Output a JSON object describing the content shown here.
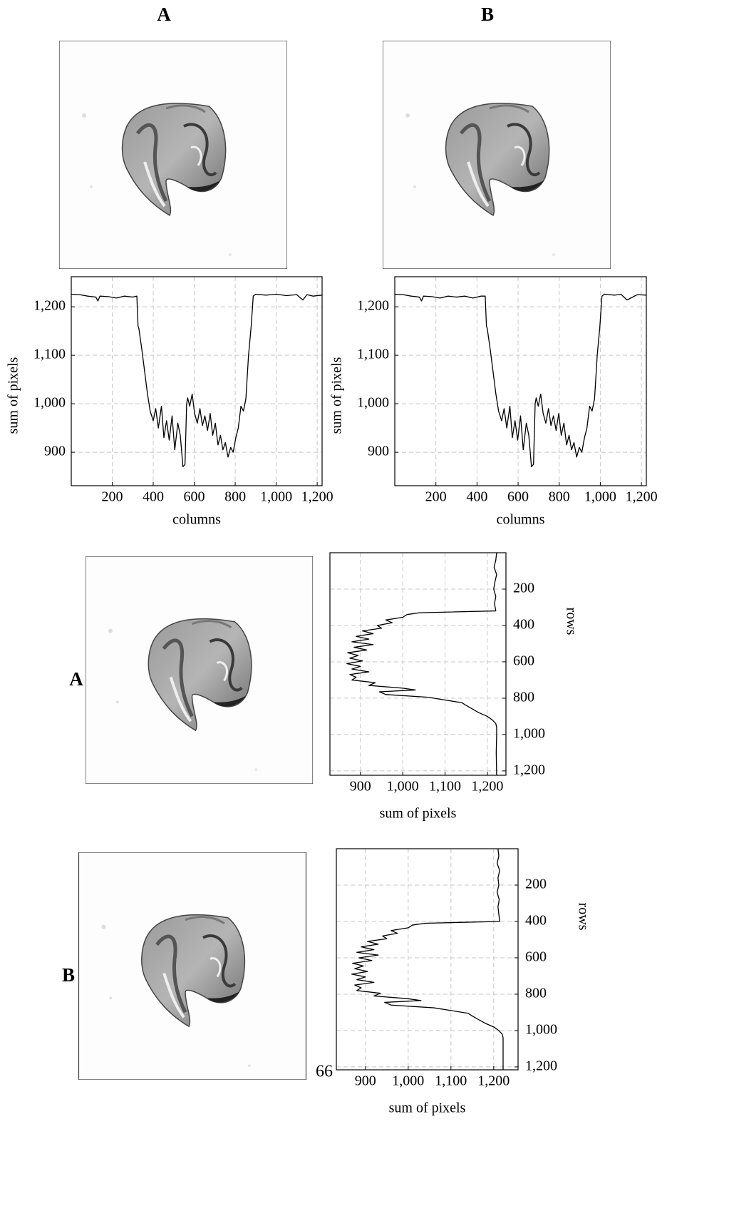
{
  "figure": {
    "column_labels": [
      "A",
      "B"
    ],
    "row_labels": [
      "A",
      "B"
    ],
    "page_number": "66"
  },
  "chart_data": [
    {
      "type": "line",
      "orientation": "horizontal",
      "xlabel": "columns",
      "ylabel": "sum of pixels",
      "grid": true,
      "xlim": [
        0,
        1224
      ],
      "xticks": [
        200,
        400,
        600,
        800,
        {
          "value": 1000,
          "label": "1,000"
        },
        {
          "value": 1200,
          "label": "1,200"
        }
      ],
      "ylim": [
        831,
        1262
      ],
      "yticks": [
        900,
        {
          "value": 1000,
          "label": "1,000"
        },
        {
          "value": 1100,
          "label": "1,100"
        },
        {
          "value": 1200,
          "label": "1,200"
        }
      ],
      "x": [
        0,
        40,
        80,
        120,
        130,
        140,
        180,
        220,
        260,
        300,
        320,
        326,
        330,
        345,
        360,
        372,
        385,
        400,
        412,
        425,
        440,
        452,
        465,
        478,
        492,
        505,
        520,
        532,
        545,
        555,
        563,
        568,
        578,
        590,
        602,
        615,
        628,
        640,
        652,
        665,
        678,
        690,
        703,
        716,
        728,
        740,
        752,
        765,
        778,
        790,
        803,
        815,
        828,
        840,
        852,
        865,
        878,
        888,
        900,
        950,
        1000,
        1050,
        1100,
        1130,
        1150,
        1180,
        1224
      ],
      "series": [
        {
          "color": "#000000",
          "values": [
            1226,
            1225,
            1222,
            1220,
            1212,
            1222,
            1221,
            1218,
            1222,
            1220,
            1222,
            1160,
            1155,
            1110,
            1060,
            1020,
            985,
            965,
            990,
            950,
            995,
            930,
            965,
            925,
            975,
            905,
            960,
            935,
            870,
            875,
            1000,
            1012,
            995,
            1020,
            980,
            960,
            990,
            955,
            975,
            945,
            980,
            935,
            960,
            915,
            935,
            905,
            920,
            890,
            910,
            900,
            930,
            950,
            995,
            985,
            1010,
            1100,
            1160,
            1222,
            1226,
            1224,
            1226,
            1223,
            1225,
            1214,
            1225,
            1222,
            1224
          ]
        }
      ]
    },
    {
      "type": "line",
      "orientation": "horizontal",
      "xlabel": "columns",
      "ylabel": "sum of pixels",
      "grid": true,
      "xlim": [
        0,
        1224
      ],
      "xticks": [
        200,
        400,
        600,
        800,
        {
          "value": 1000,
          "label": "1,000"
        },
        {
          "value": 1200,
          "label": "1,200"
        }
      ],
      "ylim": [
        831,
        1262
      ],
      "yticks": [
        900,
        {
          "value": 1000,
          "label": "1,000"
        },
        {
          "value": 1100,
          "label": "1,100"
        },
        {
          "value": 1200,
          "label": "1,200"
        }
      ],
      "x": [
        0,
        40,
        80,
        120,
        130,
        140,
        180,
        220,
        260,
        300,
        340,
        380,
        420,
        440,
        446,
        450,
        465,
        480,
        492,
        505,
        520,
        532,
        545,
        560,
        572,
        585,
        598,
        612,
        625,
        640,
        652,
        665,
        675,
        683,
        688,
        698,
        710,
        722,
        735,
        748,
        760,
        772,
        785,
        798,
        810,
        823,
        836,
        848,
        860,
        872,
        885,
        898,
        910,
        923,
        935,
        948,
        960,
        972,
        985,
        998,
        1008,
        1020,
        1070,
        1100,
        1130,
        1180,
        1224
      ],
      "series": [
        {
          "color": "#000000",
          "values": [
            1226,
            1225,
            1222,
            1220,
            1212,
            1222,
            1221,
            1218,
            1222,
            1220,
            1222,
            1218,
            1222,
            1222,
            1160,
            1155,
            1110,
            1060,
            1020,
            985,
            965,
            990,
            950,
            995,
            930,
            965,
            925,
            975,
            905,
            960,
            935,
            870,
            875,
            1000,
            1012,
            995,
            1020,
            980,
            960,
            990,
            955,
            975,
            945,
            980,
            935,
            960,
            915,
            935,
            905,
            920,
            890,
            910,
            900,
            930,
            950,
            995,
            985,
            1010,
            1100,
            1160,
            1222,
            1226,
            1224,
            1226,
            1214,
            1225,
            1224
          ]
        }
      ]
    },
    {
      "type": "line",
      "orientation": "vertical",
      "xlabel": "rows",
      "ylabel": "sum of pixels",
      "grid": true,
      "xlim": [
        0,
        1224
      ],
      "xticks": [
        200,
        400,
        600,
        800,
        {
          "value": 1000,
          "label": "1,000"
        },
        {
          "value": 1200,
          "label": "1,200"
        }
      ],
      "ylim": [
        828,
        1244
      ],
      "yticks": [
        900,
        {
          "value": 1000,
          "label": "1,000"
        },
        {
          "value": 1100,
          "label": "1,100"
        },
        {
          "value": 1200,
          "label": "1,200"
        }
      ],
      "x": [
        0,
        40,
        80,
        120,
        160,
        200,
        240,
        280,
        320,
        330,
        340,
        355,
        370,
        385,
        400,
        415,
        430,
        445,
        460,
        475,
        490,
        505,
        520,
        535,
        550,
        565,
        580,
        595,
        610,
        625,
        640,
        655,
        670,
        685,
        700,
        715,
        730,
        745,
        755,
        765,
        780,
        795,
        810,
        825,
        840,
        860,
        880,
        900,
        920,
        940,
        960,
        1000,
        1100,
        1224
      ],
      "series": [
        {
          "color": "#000000",
          "values": [
            1222,
            1220,
            1216,
            1222,
            1218,
            1215,
            1220,
            1217,
            1220,
            1040,
            1010,
            1000,
            960,
            975,
            940,
            950,
            905,
            930,
            890,
            920,
            880,
            930,
            885,
            915,
            870,
            895,
            875,
            905,
            868,
            900,
            880,
            920,
            875,
            890,
            880,
            935,
            920,
            1000,
            1030,
            945,
            960,
            1060,
            1100,
            1140,
            1150,
            1165,
            1180,
            1200,
            1212,
            1220,
            1222,
            1222,
            1221,
            1222
          ]
        }
      ]
    },
    {
      "type": "line",
      "orientation": "vertical",
      "xlabel": "rows",
      "ylabel": "sum of pixels",
      "grid": true,
      "xlim": [
        0,
        1216
      ],
      "xticks": [
        200,
        400,
        600,
        800,
        {
          "value": 1000,
          "label": "1,000"
        },
        {
          "value": 1200,
          "label": "1,200"
        }
      ],
      "ylim": [
        832,
        1257
      ],
      "yticks": [
        900,
        {
          "value": 1000,
          "label": "1,000"
        },
        {
          "value": 1100,
          "label": "1,100"
        },
        {
          "value": 1200,
          "label": "1,200"
        }
      ],
      "x": [
        0,
        40,
        80,
        120,
        160,
        200,
        240,
        280,
        320,
        360,
        400,
        410,
        420,
        435,
        450,
        465,
        480,
        495,
        510,
        525,
        540,
        555,
        570,
        585,
        600,
        615,
        630,
        645,
        660,
        675,
        690,
        705,
        720,
        735,
        750,
        765,
        780,
        795,
        810,
        825,
        835,
        845,
        860,
        875,
        890,
        905,
        920,
        940,
        960,
        980,
        1000,
        1020,
        1040,
        1100,
        1216
      ],
      "series": [
        {
          "color": "#000000",
          "values": [
            1210,
            1212,
            1208,
            1214,
            1210,
            1212,
            1208,
            1213,
            1210,
            1212,
            1214,
            1040,
            1010,
            1000,
            960,
            975,
            940,
            950,
            905,
            930,
            890,
            920,
            880,
            930,
            885,
            915,
            870,
            895,
            875,
            905,
            868,
            900,
            880,
            920,
            875,
            890,
            880,
            935,
            920,
            1000,
            1030,
            945,
            960,
            1060,
            1100,
            1140,
            1150,
            1165,
            1180,
            1200,
            1212,
            1220,
            1222,
            1222,
            1222
          ]
        }
      ]
    }
  ]
}
